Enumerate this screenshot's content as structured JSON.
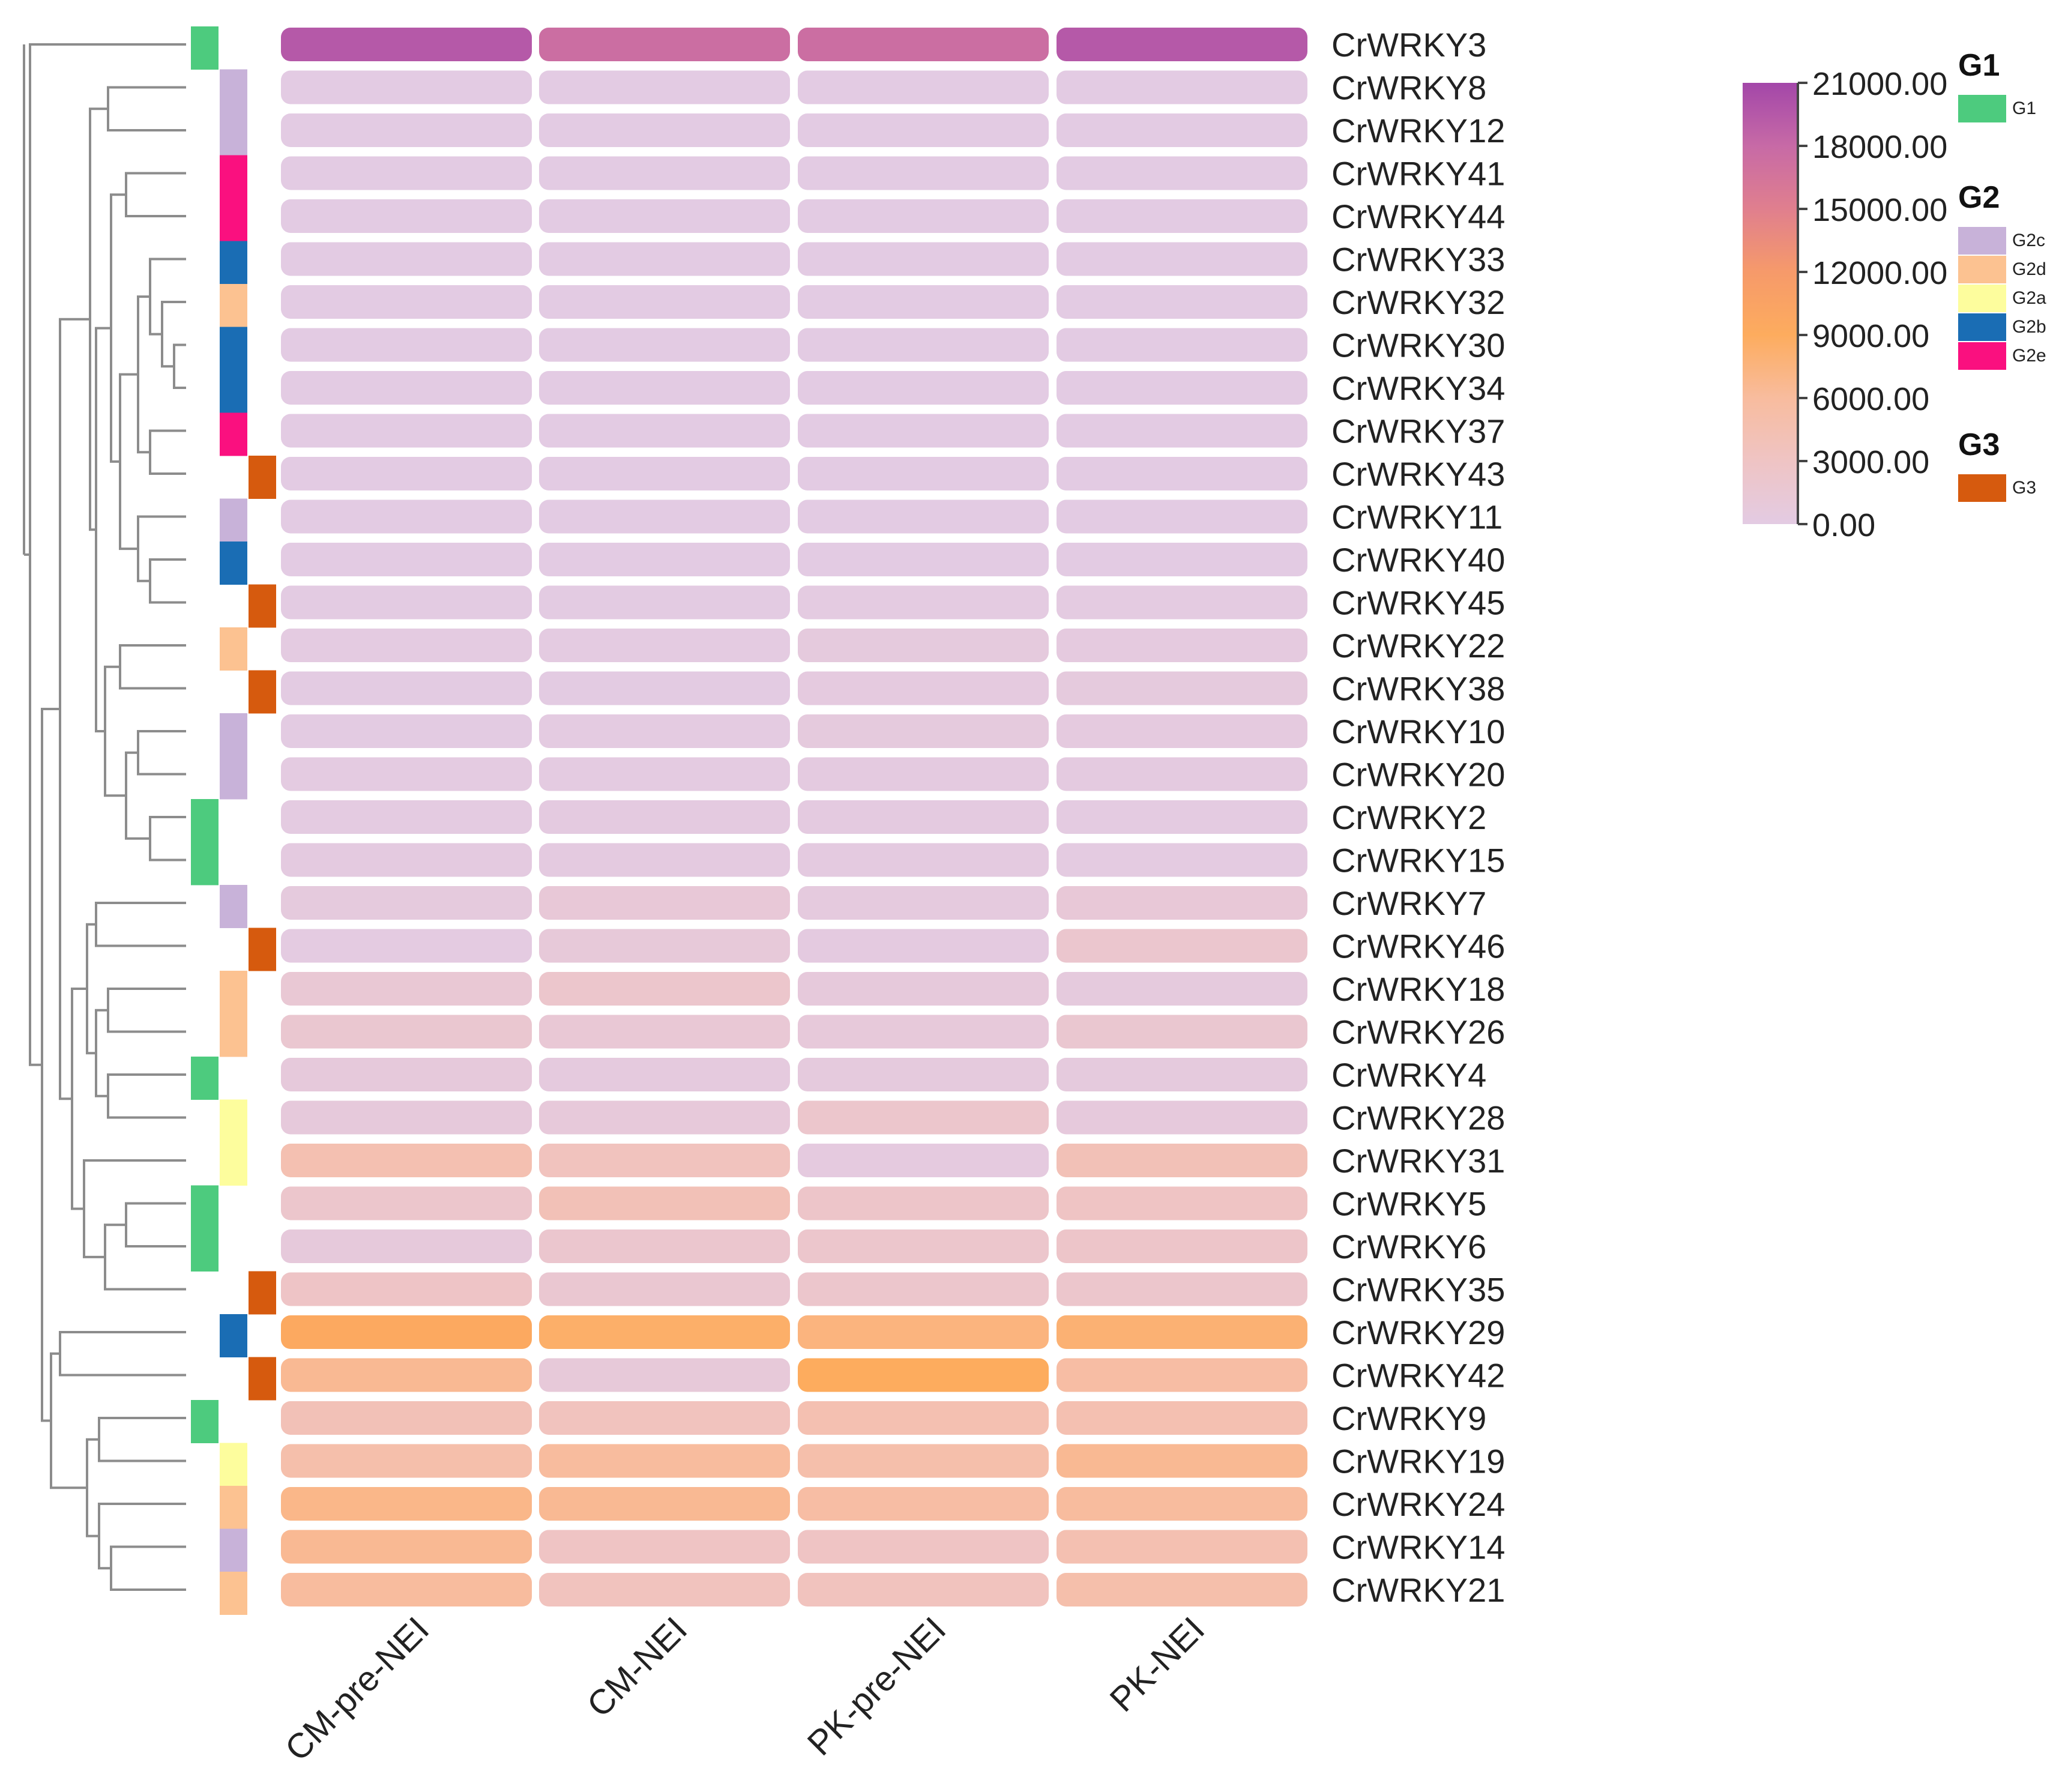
{
  "chart_data": {
    "type": "heatmap",
    "title": "",
    "xlabel": "",
    "ylabel": "",
    "columns": [
      "CM-pre-NEI",
      "CM-NEI",
      "PK-pre-NEI",
      "PK-NEI"
    ],
    "rows": [
      {
        "gene": "CrWRKY3",
        "group": "G1",
        "values": [
          19500,
          17500,
          17500,
          19500
        ]
      },
      {
        "gene": "CrWRKY8",
        "group": "G2c",
        "values": [
          0,
          0,
          0,
          0
        ]
      },
      {
        "gene": "CrWRKY12",
        "group": "G2c",
        "values": [
          0,
          0,
          0,
          0
        ]
      },
      {
        "gene": "CrWRKY41",
        "group": "G2e",
        "values": [
          0,
          0,
          0,
          0
        ]
      },
      {
        "gene": "CrWRKY44",
        "group": "G2e",
        "values": [
          0,
          0,
          0,
          0
        ]
      },
      {
        "gene": "CrWRKY33",
        "group": "G2b",
        "values": [
          0,
          0,
          0,
          0
        ]
      },
      {
        "gene": "CrWRKY32",
        "group": "G2d",
        "values": [
          0,
          0,
          0,
          0
        ]
      },
      {
        "gene": "CrWRKY30",
        "group": "G2b",
        "values": [
          0,
          0,
          0,
          0
        ]
      },
      {
        "gene": "CrWRKY34",
        "group": "G2b",
        "values": [
          0,
          0,
          0,
          0
        ]
      },
      {
        "gene": "CrWRKY37",
        "group": "G2e",
        "values": [
          0,
          0,
          0,
          0
        ]
      },
      {
        "gene": "CrWRKY43",
        "group": "G3",
        "values": [
          0,
          0,
          0,
          0
        ]
      },
      {
        "gene": "CrWRKY11",
        "group": "G2c",
        "values": [
          0,
          0,
          0,
          0
        ]
      },
      {
        "gene": "CrWRKY40",
        "group": "G2b",
        "values": [
          0,
          0,
          0,
          0
        ]
      },
      {
        "gene": "CrWRKY45",
        "group": "G3",
        "values": [
          100,
          100,
          200,
          200
        ]
      },
      {
        "gene": "CrWRKY22",
        "group": "G2d",
        "values": [
          200,
          200,
          600,
          400
        ]
      },
      {
        "gene": "CrWRKY38",
        "group": "G3",
        "values": [
          100,
          100,
          400,
          600
        ]
      },
      {
        "gene": "CrWRKY10",
        "group": "G2c",
        "values": [
          100,
          200,
          600,
          400
        ]
      },
      {
        "gene": "CrWRKY20",
        "group": "G2c",
        "values": [
          200,
          200,
          300,
          300
        ]
      },
      {
        "gene": "CrWRKY2",
        "group": "G1",
        "values": [
          200,
          300,
          300,
          200
        ]
      },
      {
        "gene": "CrWRKY15",
        "group": "G1",
        "values": [
          300,
          300,
          300,
          200
        ]
      },
      {
        "gene": "CrWRKY7",
        "group": "G2c",
        "values": [
          600,
          1200,
          500,
          1200
        ]
      },
      {
        "gene": "CrWRKY46",
        "group": "G3",
        "values": [
          200,
          1000,
          300,
          2000
        ]
      },
      {
        "gene": "CrWRKY18",
        "group": "G2d",
        "values": [
          1500,
          2200,
          800,
          600
        ]
      },
      {
        "gene": "CrWRKY26",
        "group": "G2d",
        "values": [
          1800,
          1400,
          900,
          1800
        ]
      },
      {
        "gene": "CrWRKY4",
        "group": "G1",
        "values": [
          800,
          500,
          600,
          600
        ]
      },
      {
        "gene": "CrWRKY28",
        "group": "G2a",
        "values": [
          800,
          900,
          2200,
          700
        ]
      },
      {
        "gene": "CrWRKY31",
        "group": "G2a",
        "values": [
          4500,
          3500,
          400,
          4000
        ]
      },
      {
        "gene": "CrWRKY5",
        "group": "G1",
        "values": [
          2200,
          4000,
          2500,
          3000
        ]
      },
      {
        "gene": "CrWRKY6",
        "group": "G1",
        "values": [
          800,
          2000,
          2200,
          2500
        ]
      },
      {
        "gene": "CrWRKY35",
        "group": "G3",
        "values": [
          2800,
          1700,
          2200,
          2200
        ]
      },
      {
        "gene": "CrWRKY29",
        "group": "G2b",
        "values": [
          9500,
          8500,
          7500,
          8000
        ]
      },
      {
        "gene": "CrWRKY42",
        "group": "G3",
        "values": [
          6500,
          1000,
          9000,
          5500
        ]
      },
      {
        "gene": "CrWRKY9",
        "group": "G1",
        "values": [
          4000,
          3500,
          4500,
          4500
        ]
      },
      {
        "gene": "CrWRKY19",
        "group": "G2a",
        "values": [
          5000,
          6000,
          5000,
          6500
        ]
      },
      {
        "gene": "CrWRKY24",
        "group": "G2d",
        "values": [
          7000,
          6500,
          5500,
          6000
        ]
      },
      {
        "gene": "CrWRKY14",
        "group": "G2c",
        "values": [
          6500,
          3000,
          3000,
          4500
        ]
      },
      {
        "gene": "CrWRKY21",
        "group": "G2d",
        "values": [
          6000,
          3500,
          3500,
          5000
        ]
      }
    ],
    "color_scale": {
      "min": 0,
      "max": 21000,
      "ticks": [
        "21000.00",
        "18000.00",
        "15000.00",
        "12000.00",
        "9000.00",
        "6000.00",
        "3000.00",
        "0.00"
      ],
      "stops": [
        {
          "value": 0,
          "color": "#e3cbe3"
        },
        {
          "value": 3000,
          "color": "#efc4c4"
        },
        {
          "value": 6000,
          "color": "#f8bc9e"
        },
        {
          "value": 9000,
          "color": "#fdac5e"
        },
        {
          "value": 12000,
          "color": "#f69a6a"
        },
        {
          "value": 15000,
          "color": "#e07f8e"
        },
        {
          "value": 18000,
          "color": "#c76aa6"
        },
        {
          "value": 21000,
          "color": "#a347a9"
        }
      ]
    },
    "legends": [
      {
        "title": "G1",
        "items": [
          {
            "label": "G1",
            "color": "#4dcb7e"
          }
        ]
      },
      {
        "title": "G2",
        "items": [
          {
            "label": "G2c",
            "color": "#c8b2d9"
          },
          {
            "label": "G2d",
            "color": "#fcc291"
          },
          {
            "label": "G2a",
            "color": "#fdfd9d"
          },
          {
            "label": "G2b",
            "color": "#1a6db4"
          },
          {
            "label": "G2e",
            "color": "#fa107f"
          }
        ]
      },
      {
        "title": "G3",
        "items": [
          {
            "label": "G3",
            "color": "#d65a0e"
          }
        ]
      }
    ]
  }
}
